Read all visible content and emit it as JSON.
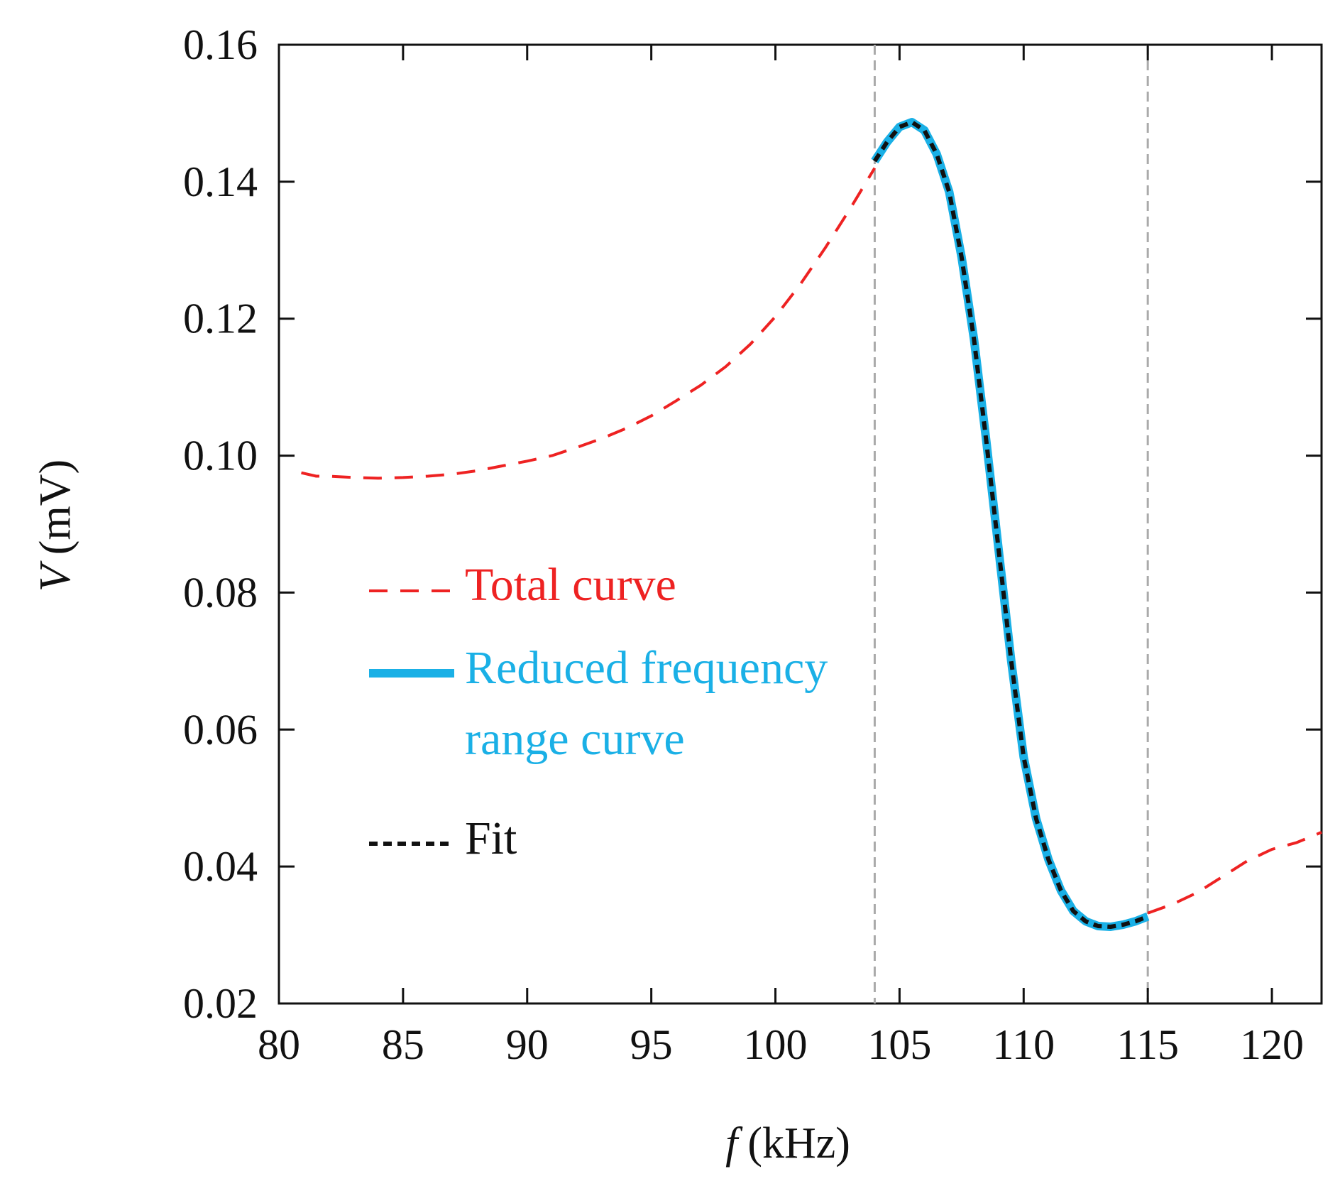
{
  "chart_data": {
    "type": "line",
    "xlabel_symbol": "f",
    "xlabel_unit": "(kHz)",
    "ylabel_symbol": "V",
    "ylabel_unit": "(mV)",
    "xlim": [
      80,
      122
    ],
    "ylim": [
      0.02,
      0.16
    ],
    "x_ticks": [
      "80",
      "85",
      "90",
      "95",
      "100",
      "105",
      "110",
      "115",
      "120"
    ],
    "y_ticks": [
      "0.02",
      "0.04",
      "0.06",
      "0.08",
      "0.10",
      "0.12",
      "0.14",
      "0.16"
    ],
    "vertical_markers": [
      104,
      115
    ],
    "legend": {
      "placement": "center-left",
      "entries": [
        {
          "series": "total",
          "lines": [
            "Total curve"
          ]
        },
        {
          "series": "reduced",
          "lines": [
            "Reduced frequency",
            "range curve"
          ]
        },
        {
          "series": "fit",
          "lines": [
            "Fit"
          ]
        }
      ]
    },
    "series": [
      {
        "id": "total",
        "name": "Total curve",
        "color": "#ee2222",
        "style": "dashed",
        "x": [
          80.9,
          81.5,
          82,
          83,
          84,
          85,
          86,
          87,
          88,
          89,
          90,
          91,
          92,
          93,
          94,
          95,
          96,
          97,
          98,
          99,
          100,
          101,
          102,
          103,
          104
        ],
        "y": [
          0.0975,
          0.097,
          0.097,
          0.0968,
          0.0967,
          0.0968,
          0.097,
          0.0973,
          0.0978,
          0.0985,
          0.0992,
          0.1,
          0.1012,
          0.1025,
          0.104,
          0.1058,
          0.108,
          0.1103,
          0.113,
          0.1163,
          0.1203,
          0.125,
          0.1303,
          0.136,
          0.142
        ]
      },
      {
        "id": "total_right",
        "name": "Total curve",
        "color": "#ee2222",
        "style": "dashed",
        "x": [
          115,
          116,
          117,
          118,
          119,
          120,
          121,
          122
        ],
        "y": [
          0.0332,
          0.0345,
          0.0362,
          0.0385,
          0.0408,
          0.0425,
          0.0435,
          0.045
        ]
      },
      {
        "id": "reduced",
        "name": "Reduced frequency range curve",
        "color": "#1ab0e6",
        "style": "solid",
        "x": [
          104,
          104.5,
          105,
          105.5,
          106,
          106.5,
          107,
          107.5,
          108,
          108.5,
          109,
          109.5,
          110,
          110.5,
          111,
          111.5,
          112,
          112.5,
          113,
          113.5,
          114,
          114.5,
          115
        ],
        "y": [
          0.143,
          0.1458,
          0.148,
          0.1487,
          0.1475,
          0.144,
          0.1385,
          0.129,
          0.117,
          0.102,
          0.086,
          0.07,
          0.056,
          0.047,
          0.041,
          0.0365,
          0.0335,
          0.032,
          0.0313,
          0.0312,
          0.0315,
          0.032,
          0.0327
        ]
      },
      {
        "id": "fit",
        "name": "Fit",
        "color": "#111111",
        "style": "dotted",
        "x": [
          104,
          104.5,
          105,
          105.5,
          106,
          106.5,
          107,
          107.5,
          108,
          108.5,
          109,
          109.5,
          110,
          110.5,
          111,
          111.5,
          112,
          112.5,
          113,
          113.5,
          114,
          114.5,
          115
        ],
        "y": [
          0.143,
          0.1458,
          0.148,
          0.1487,
          0.1475,
          0.144,
          0.1385,
          0.129,
          0.117,
          0.102,
          0.086,
          0.07,
          0.056,
          0.047,
          0.041,
          0.0365,
          0.0335,
          0.032,
          0.0313,
          0.0312,
          0.0315,
          0.032,
          0.0327
        ]
      }
    ]
  }
}
